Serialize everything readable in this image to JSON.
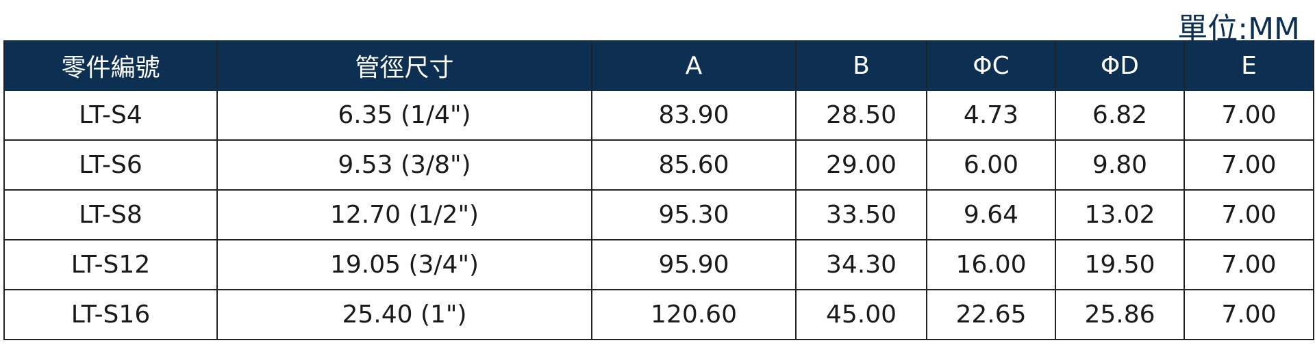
{
  "unit_label": "單位:MM",
  "table": {
    "headers": [
      "零件編號",
      "管徑尺寸",
      "A",
      "B",
      "ΦC",
      "ΦD",
      "E"
    ],
    "rows": [
      [
        "LT-S4",
        "6.35 (1/4\")",
        "83.90",
        "28.50",
        "4.73",
        "6.82",
        "7.00"
      ],
      [
        "LT-S6",
        "9.53 (3/8\")",
        "85.60",
        "29.00",
        "6.00",
        "9.80",
        "7.00"
      ],
      [
        "LT-S8",
        "12.70 (1/2\")",
        "95.30",
        "33.50",
        "9.64",
        "13.02",
        "7.00"
      ],
      [
        "LT-S12",
        "19.05 (3/4\")",
        "95.90",
        "34.30",
        "16.00",
        "19.50",
        "7.00"
      ],
      [
        "LT-S16",
        "25.40 (1\")",
        "120.60",
        "45.00",
        "22.65",
        "25.86",
        "7.00"
      ]
    ]
  }
}
